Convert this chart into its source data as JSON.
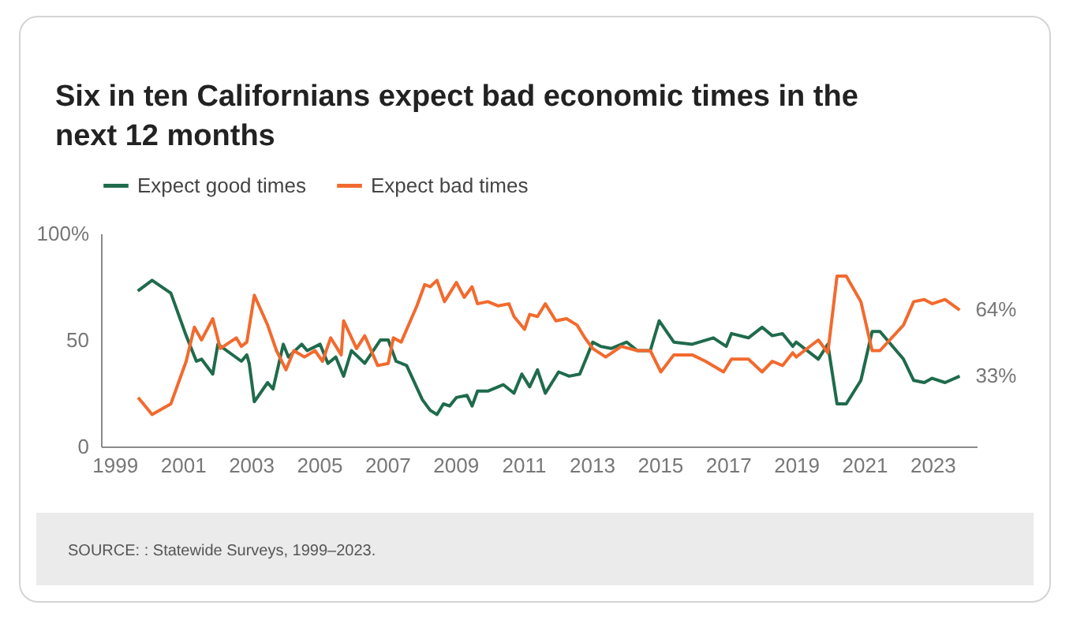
{
  "chart_data": {
    "type": "line",
    "title": "Six in ten Californians expect bad economic times in the next 12 months",
    "xlim": [
      1998.6,
      2024.3
    ],
    "xticks": [
      1999,
      2001,
      2003,
      2005,
      2007,
      2009,
      2011,
      2013,
      2015,
      2017,
      2019,
      2021,
      2023
    ],
    "ylim": [
      0,
      100
    ],
    "yticks": [
      0,
      50,
      {
        "value": 100,
        "label": "100%"
      }
    ],
    "grid": false,
    "legend": "top left",
    "annotations": [
      "SOURCE: : Statewide Surveys, 1999–2023."
    ],
    "series": [
      {
        "name": "Expect good times",
        "color": "#1f6b4c",
        "x": [
          1999.68,
          2000.1,
          2000.65,
          2001.1,
          2001.4,
          2001.55,
          2001.88,
          2002.03,
          2002.72,
          2002.88,
          2002.95,
          2003.1,
          2003.49,
          2003.65,
          2003.95,
          2004.1,
          2004.49,
          2004.65,
          2005.03,
          2005.26,
          2005.49,
          2005.72,
          2005.95,
          2006.15,
          2006.34,
          2006.8,
          2007.03,
          2007.26,
          2007.57,
          2008.03,
          2008.26,
          2008.46,
          2008.65,
          2008.83,
          2009.03,
          2009.34,
          2009.49,
          2009.65,
          2009.95,
          2010.41,
          2010.72,
          2010.95,
          2011.18,
          2011.41,
          2011.64,
          2012.03,
          2012.34,
          2012.65,
          2012.88,
          2013.03,
          2013.26,
          2013.57,
          2014.03,
          2014.34,
          2014.72,
          2014.98,
          2015.41,
          2015.95,
          2016.57,
          2016.95,
          2017.1,
          2017.6,
          2018.0,
          2018.3,
          2018.6,
          2018.9,
          2019.0,
          2019.65,
          2019.93,
          2020.2,
          2020.47,
          2020.9,
          2021.23,
          2021.46,
          2022.15,
          2022.45,
          2022.76,
          2022.99,
          2023.37,
          2023.8
        ],
        "values": [
          73,
          78,
          72,
          52,
          40,
          41,
          34,
          48,
          40,
          43,
          39,
          21,
          30,
          27,
          48,
          42,
          48,
          45,
          48,
          39,
          42,
          33,
          45,
          42,
          39,
          50,
          50,
          40,
          38,
          22,
          17,
          15,
          20,
          19,
          23,
          24,
          19,
          26,
          26,
          29,
          25,
          34,
          28,
          36,
          25,
          35,
          33,
          34,
          43,
          49,
          47,
          46,
          49,
          45,
          45,
          59,
          49,
          48,
          51,
          47,
          53,
          51,
          56,
          52,
          53,
          47,
          49,
          41,
          48,
          20,
          20,
          31,
          54,
          54,
          41,
          31,
          30,
          32,
          30,
          33
        ],
        "value_labels": [
          null,
          null,
          null,
          null,
          null,
          null,
          null,
          null,
          null,
          null,
          null,
          null,
          null,
          null,
          null,
          null,
          null,
          null,
          null,
          null,
          null,
          null,
          null,
          null,
          null,
          null,
          null,
          null,
          null,
          null,
          null,
          null,
          null,
          null,
          null,
          null,
          null,
          null,
          null,
          null,
          null,
          null,
          null,
          null,
          null,
          null,
          null,
          null,
          null,
          null,
          null,
          null,
          null,
          null,
          null,
          null,
          null,
          null,
          null,
          null,
          null,
          null,
          null,
          null,
          null,
          null,
          null,
          null,
          null,
          null,
          null,
          null,
          null,
          null,
          null,
          null,
          null,
          null,
          null,
          "33%"
        ]
      },
      {
        "name": "Expect bad times",
        "color": "#f26a2e",
        "x": [
          1999.69,
          2000.1,
          2000.65,
          2001.1,
          2001.34,
          2001.55,
          2001.88,
          2002.1,
          2002.57,
          2002.72,
          2002.88,
          2003.1,
          2003.49,
          2003.75,
          2004.03,
          2004.26,
          2004.57,
          2004.88,
          2005.1,
          2005.34,
          2005.65,
          2005.72,
          2006.1,
          2006.34,
          2006.72,
          2007.03,
          2007.18,
          2007.41,
          2007.87,
          2008.1,
          2008.26,
          2008.46,
          2008.68,
          2009.03,
          2009.26,
          2009.49,
          2009.65,
          2009.95,
          2010.26,
          2010.57,
          2010.72,
          2011.03,
          2011.18,
          2011.41,
          2011.64,
          2011.95,
          2012.26,
          2012.57,
          2012.8,
          2013.03,
          2013.41,
          2013.87,
          2014.34,
          2014.72,
          2015.03,
          2015.41,
          2015.95,
          2016.34,
          2016.87,
          2017.1,
          2017.6,
          2018.0,
          2018.3,
          2018.6,
          2018.9,
          2019.0,
          2019.65,
          2019.93,
          2020.2,
          2020.47,
          2020.9,
          2021.23,
          2021.46,
          2022.15,
          2022.45,
          2022.76,
          2022.99,
          2023.37,
          2023.8
        ],
        "values": [
          23,
          15,
          20,
          40,
          56,
          50,
          60,
          46,
          51,
          47,
          49,
          71,
          57,
          45,
          36,
          45,
          42,
          45,
          40,
          51,
          43,
          59,
          46,
          52,
          38,
          39,
          51,
          49,
          66,
          76,
          75,
          78,
          68,
          77,
          70,
          75,
          67,
          68,
          66,
          67,
          61,
          55,
          62,
          61,
          67,
          59,
          60,
          57,
          51,
          46,
          42,
          47,
          45,
          45,
          35,
          43,
          43,
          40,
          35,
          41,
          41,
          35,
          40,
          38,
          44,
          42,
          50,
          44,
          80,
          80,
          68,
          45,
          45,
          57,
          68,
          69,
          67,
          69,
          64
        ],
        "value_labels": [
          null,
          null,
          null,
          null,
          null,
          null,
          null,
          null,
          null,
          null,
          null,
          null,
          null,
          null,
          null,
          null,
          null,
          null,
          null,
          null,
          null,
          null,
          null,
          null,
          null,
          null,
          null,
          null,
          null,
          null,
          null,
          null,
          null,
          null,
          null,
          null,
          null,
          null,
          null,
          null,
          null,
          null,
          null,
          null,
          null,
          null,
          null,
          null,
          null,
          null,
          null,
          null,
          null,
          null,
          null,
          null,
          null,
          null,
          null,
          null,
          null,
          null,
          null,
          null,
          null,
          null,
          null,
          null,
          null,
          null,
          null,
          null,
          null,
          null,
          null,
          null,
          null,
          null,
          "64%"
        ]
      }
    ]
  }
}
